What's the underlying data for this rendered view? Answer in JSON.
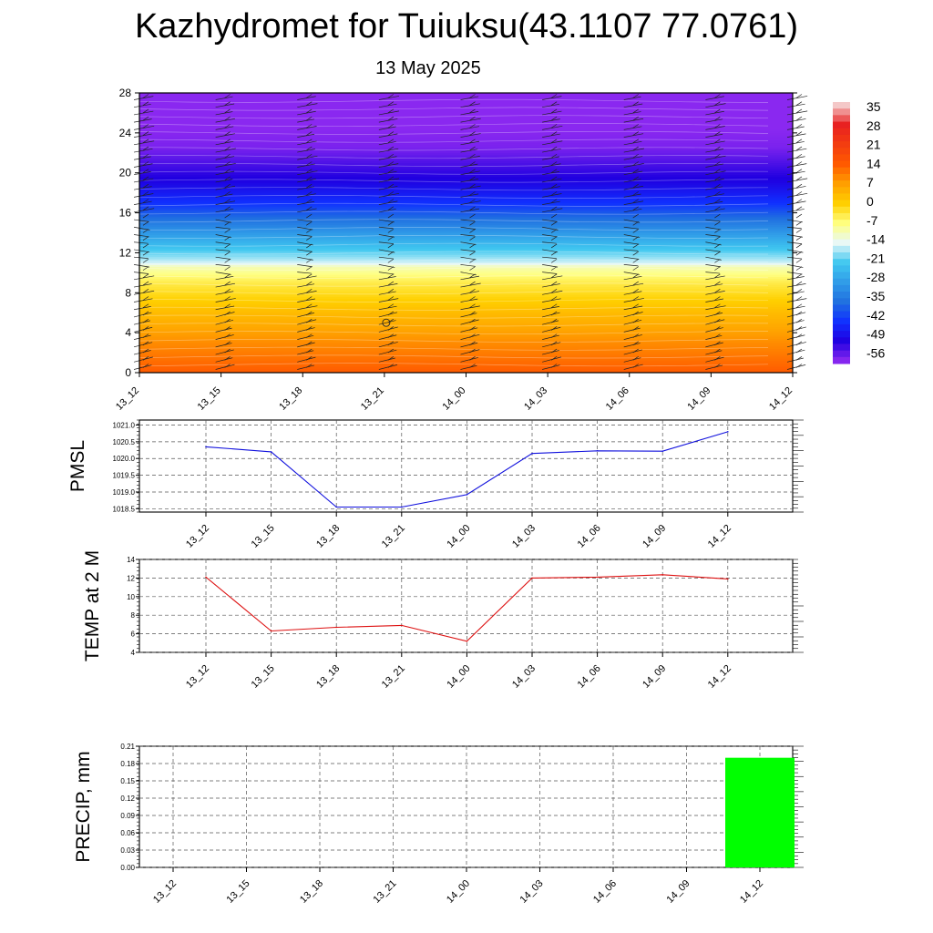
{
  "page": {
    "title": "Kazhydromet for Tuiuksu(43.1107 77.0761)",
    "subtitle": "13 May 2025"
  },
  "chart_data": [
    {
      "type": "heatmap",
      "name": "vertical-temperature-profile",
      "x_ticks": [
        "13_12",
        "13_15",
        "13_18",
        "13_21",
        "14_00",
        "14_03",
        "14_06",
        "14_09",
        "14_12"
      ],
      "y_ticks": [
        0,
        4,
        8,
        12,
        16,
        20,
        24,
        28
      ],
      "ylim": [
        0,
        28
      ],
      "colorbar_labels": [
        "35",
        "28",
        "21",
        "14",
        "7",
        "0",
        "-7",
        "-14",
        "-21",
        "-28",
        "-35",
        "-42",
        "-49",
        "-56"
      ],
      "colorbar_stops": [
        {
          "value": 35,
          "color": "#f4c8c8"
        },
        {
          "value": 28,
          "color": "#e82020"
        },
        {
          "value": 14,
          "color": "#ff5a00"
        },
        {
          "value": 7,
          "color": "#ffa000"
        },
        {
          "value": 0,
          "color": "#ffd000"
        },
        {
          "value": -7,
          "color": "#ffff80"
        },
        {
          "value": -14,
          "color": "#e8f8f8"
        },
        {
          "value": -21,
          "color": "#40c8f0"
        },
        {
          "value": -35,
          "color": "#2070e0"
        },
        {
          "value": -42,
          "color": "#1030ff"
        },
        {
          "value": -49,
          "color": "#2000e0"
        },
        {
          "value": -56,
          "color": "#8a28f0"
        }
      ],
      "vertical_bands": [
        {
          "height": 0,
          "temp": 14
        },
        {
          "height": 3,
          "temp": 9
        },
        {
          "height": 6,
          "temp": 3
        },
        {
          "height": 9,
          "temp": -4
        },
        {
          "height": 10.6,
          "temp": -10
        },
        {
          "height": 11,
          "temp": -15
        },
        {
          "height": 13,
          "temp": -24
        },
        {
          "height": 15,
          "temp": -33
        },
        {
          "height": 17,
          "temp": -42
        },
        {
          "height": 19,
          "temp": -48
        },
        {
          "height": 21,
          "temp": -52
        },
        {
          "height": 22.6,
          "temp": -55
        },
        {
          "height": 28,
          "temp": -58
        }
      ],
      "colors": {
        "accent_low": "#8a28f0",
        "accent_high": "#ff5a00"
      }
    },
    {
      "type": "line",
      "name": "pmsl",
      "ylabel": "PMSL",
      "categories": [
        "13_12",
        "13_15",
        "13_18",
        "13_21",
        "14_00",
        "14_03",
        "14_06",
        "14_09",
        "14_12"
      ],
      "values": [
        1020.35,
        1020.2,
        1018.55,
        1018.55,
        1018.92,
        1020.15,
        1020.23,
        1020.22,
        1020.8
      ],
      "ylim": [
        1018.4,
        1021.15
      ],
      "y_ticks": [
        "1018.5",
        "1019.0",
        "1019.5",
        "1020.0",
        "1020.5",
        "1021.0"
      ],
      "color": "#1010dd"
    },
    {
      "type": "line",
      "name": "temp-2m",
      "ylabel": "TEMP at 2 M",
      "categories": [
        "13_12",
        "13_15",
        "13_18",
        "13_21",
        "14_00",
        "14_03",
        "14_06",
        "14_09",
        "14_12"
      ],
      "values": [
        12.1,
        6.3,
        6.7,
        6.9,
        5.2,
        12.0,
        12.1,
        12.35,
        11.9
      ],
      "ylim": [
        4,
        14
      ],
      "y_ticks": [
        "4",
        "6",
        "8",
        "10",
        "12",
        "14"
      ],
      "color": "#dd1010"
    },
    {
      "type": "bar",
      "name": "precip",
      "ylabel": "PRECIP, mm",
      "categories": [
        "13_12",
        "13_15",
        "13_18",
        "13_21",
        "14_00",
        "14_03",
        "14_06",
        "14_09",
        "14_12"
      ],
      "values": [
        0,
        0,
        0,
        0,
        0,
        0,
        0,
        0,
        0.19
      ],
      "ylim": [
        0,
        0.21
      ],
      "y_ticks": [
        "0.00",
        "0.03",
        "0.06",
        "0.09",
        "0.12",
        "0.15",
        "0.18",
        "0.21"
      ],
      "color": "#00ff00"
    }
  ]
}
